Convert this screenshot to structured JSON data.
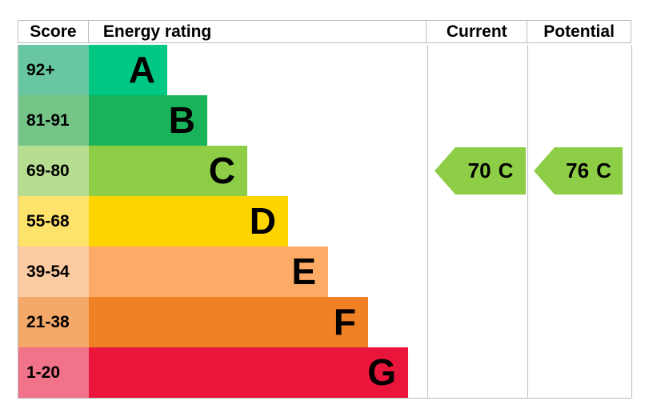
{
  "header": {
    "score": "Score",
    "rating": "Energy rating",
    "current": "Current",
    "potential": "Potential"
  },
  "bands": [
    {
      "score": "92+",
      "letter": "A",
      "color": "#00c781",
      "score_color": "#69c6a2"
    },
    {
      "score": "81-91",
      "letter": "B",
      "color": "#19b459",
      "score_color": "#74c587"
    },
    {
      "score": "69-80",
      "letter": "C",
      "color": "#8dce46",
      "score_color": "#b7de90"
    },
    {
      "score": "55-68",
      "letter": "D",
      "color": "#ffd500",
      "score_color": "#fde26b"
    },
    {
      "score": "39-54",
      "letter": "E",
      "color": "#fcaa65",
      "score_color": "#fdcba1"
    },
    {
      "score": "21-38",
      "letter": "F",
      "color": "#ef8023",
      "score_color": "#f4a968"
    },
    {
      "score": "1-20",
      "letter": "G",
      "color": "#e9153b",
      "score_color": "#f1738a"
    }
  ],
  "current": {
    "value": "70",
    "band": "C",
    "color": "#8dce46",
    "row_index": 2
  },
  "potential": {
    "value": "76",
    "band": "C",
    "color": "#8dce46",
    "row_index": 2
  },
  "border_color": "#bdbdbd",
  "chart_data": {
    "type": "bar",
    "title": "Energy rating",
    "categories": [
      "A",
      "B",
      "C",
      "D",
      "E",
      "F",
      "G"
    ],
    "score_ranges": [
      "92+",
      "81-91",
      "69-80",
      "55-68",
      "39-54",
      "21-38",
      "1-20"
    ],
    "band_colors": [
      "#00c781",
      "#19b459",
      "#8dce46",
      "#ffd500",
      "#fcaa65",
      "#ef8023",
      "#e9153b"
    ],
    "columns": [
      "Score",
      "Energy rating",
      "Current",
      "Potential"
    ],
    "current": {
      "value": 70,
      "band": "C"
    },
    "potential": {
      "value": 76,
      "band": "C"
    },
    "legend_position": "none",
    "notes": "EPC-style stepped energy-rating band chart; bar length grows from A (shortest) to G (longest); current and potential ratings shown as left-pointing arrows aligned with band C row"
  }
}
